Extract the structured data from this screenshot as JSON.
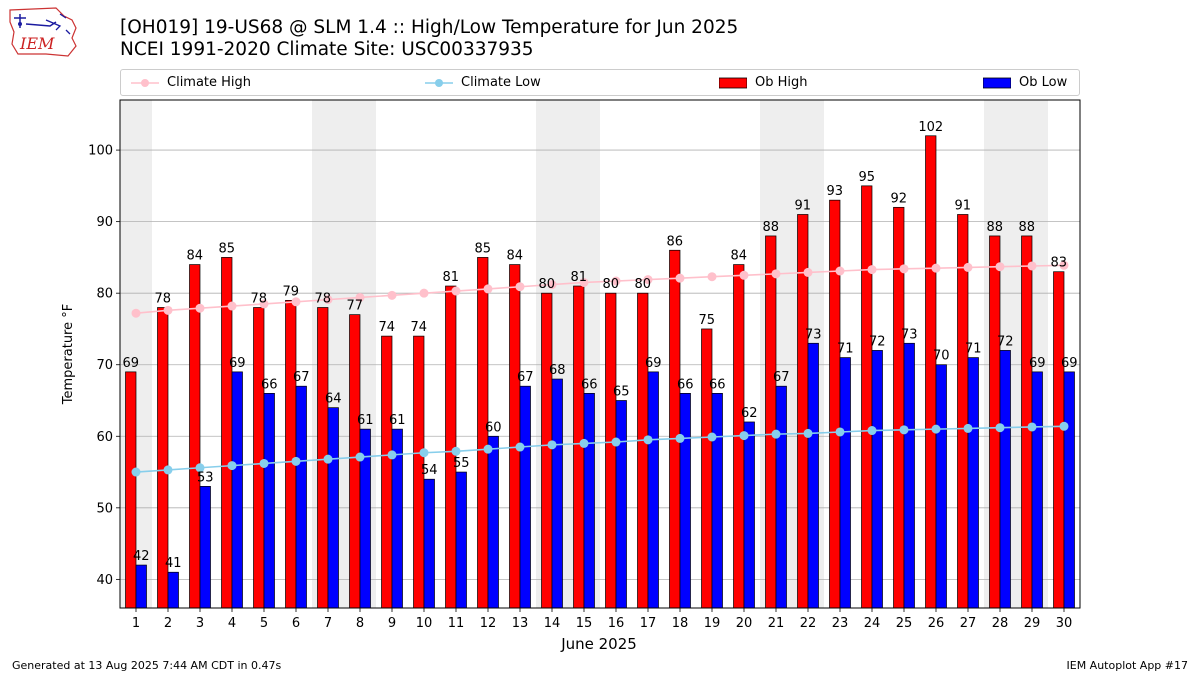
{
  "title_line1": "[OH019] 19-US68 @ SLM 1.4 :: High/Low Temperature for Jun 2025",
  "title_line2": "NCEI 1991-2020 Climate Site: USC00337935",
  "logo_text": "IEM",
  "footer_left": "Generated at 13 Aug 2025 7:44 AM CDT in 0.47s",
  "footer_right": "IEM Autoplot App #17",
  "legend": {
    "climate_high": "Climate High",
    "climate_low": "Climate Low",
    "ob_high": "Ob High",
    "ob_low": "Ob Low"
  },
  "colors": {
    "ob_high": "#ff0000",
    "ob_low": "#0000ff",
    "climate_high": "#ffc0cb",
    "climate_low": "#87ceeb",
    "weekend_shade": "#eeeeee"
  },
  "chart_data": {
    "type": "bar",
    "xlabel": "June 2025",
    "ylabel": "Temperature °F",
    "ylim": [
      36,
      107
    ],
    "yticks": [
      40,
      50,
      60,
      70,
      80,
      90,
      100
    ],
    "grid": "horizontal",
    "legend_position": "top",
    "categories": [
      1,
      2,
      3,
      4,
      5,
      6,
      7,
      8,
      9,
      10,
      11,
      12,
      13,
      14,
      15,
      16,
      17,
      18,
      19,
      20,
      21,
      22,
      23,
      24,
      25,
      26,
      27,
      28,
      29,
      30
    ],
    "shaded_days": [
      1,
      7,
      8,
      14,
      15,
      21,
      22,
      28,
      29
    ],
    "series": [
      {
        "name": "Ob High",
        "kind": "bar",
        "values": [
          69,
          78,
          84,
          85,
          78,
          79,
          78,
          77,
          74,
          74,
          81,
          85,
          84,
          80,
          81,
          80,
          80,
          86,
          75,
          84,
          88,
          91,
          93,
          95,
          92,
          102,
          91,
          88,
          88,
          83
        ]
      },
      {
        "name": "Ob Low",
        "kind": "bar",
        "values": [
          42,
          41,
          53,
          69,
          66,
          67,
          64,
          61,
          61,
          54,
          55,
          60,
          67,
          68,
          66,
          65,
          69,
          66,
          66,
          62,
          67,
          73,
          71,
          72,
          73,
          70,
          71,
          72,
          69,
          69
        ]
      },
      {
        "name": "Climate High",
        "kind": "line",
        "values": [
          77.2,
          77.6,
          77.9,
          78.2,
          78.5,
          78.8,
          79.1,
          79.4,
          79.7,
          80.0,
          80.3,
          80.6,
          80.9,
          81.2,
          81.5,
          81.7,
          81.9,
          82.1,
          82.3,
          82.5,
          82.7,
          82.9,
          83.1,
          83.3,
          83.4,
          83.5,
          83.6,
          83.7,
          83.8,
          83.9
        ]
      },
      {
        "name": "Climate Low",
        "kind": "line",
        "values": [
          55.0,
          55.3,
          55.6,
          55.9,
          56.2,
          56.5,
          56.8,
          57.1,
          57.4,
          57.7,
          57.9,
          58.2,
          58.5,
          58.8,
          59.0,
          59.2,
          59.5,
          59.7,
          59.9,
          60.1,
          60.3,
          60.4,
          60.6,
          60.8,
          60.9,
          61.0,
          61.1,
          61.2,
          61.3,
          61.4
        ]
      }
    ]
  }
}
